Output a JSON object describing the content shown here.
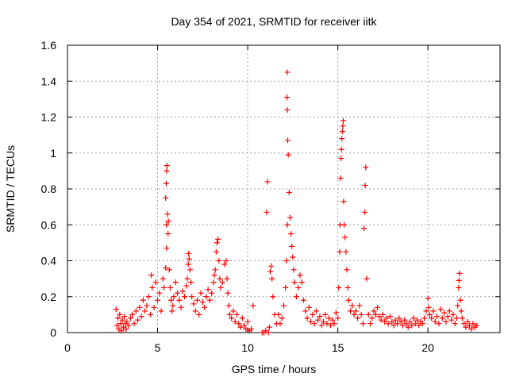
{
  "chart_data": {
    "type": "scatter",
    "title": "Day 354 of 2021, SRMTID for receiver iitk",
    "xlabel": "GPS time / hours",
    "ylabel": "SRMTID / TECUs",
    "xlim": [
      0,
      24
    ],
    "ylim": [
      0,
      1.6
    ],
    "x_ticks": [
      0,
      5,
      10,
      15,
      20
    ],
    "y_ticks": [
      0,
      0.2,
      0.4,
      0.6,
      0.8,
      1,
      1.2,
      1.4,
      1.6
    ],
    "x_tick_labels": [
      "0",
      "5",
      "10",
      "15",
      "20"
    ],
    "y_tick_labels": [
      "0",
      "0.2",
      "0.4",
      "0.6",
      "0.8",
      "1",
      "1.2",
      "1.4",
      "1.6"
    ],
    "grid": true,
    "marker": "+",
    "series": [
      {
        "name": "SRMTID",
        "color": "#ff0000",
        "points": [
          [
            2.7,
            0.13
          ],
          [
            2.75,
            0.04
          ],
          [
            2.8,
            0.08
          ],
          [
            2.85,
            0.02
          ],
          [
            2.9,
            0.1
          ],
          [
            2.95,
            0.05
          ],
          [
            3.0,
            0.01
          ],
          [
            3.05,
            0.07
          ],
          [
            3.1,
            0.03
          ],
          [
            3.15,
            0.09
          ],
          [
            3.2,
            0.05
          ],
          [
            3.25,
            0.02
          ],
          [
            3.3,
            0.06
          ],
          [
            3.4,
            0.04
          ],
          [
            3.5,
            0.08
          ],
          [
            3.6,
            0.1
          ],
          [
            3.7,
            0.05
          ],
          [
            3.8,
            0.12
          ],
          [
            3.9,
            0.07
          ],
          [
            4.0,
            0.14
          ],
          [
            4.1,
            0.09
          ],
          [
            4.2,
            0.18
          ],
          [
            4.3,
            0.12
          ],
          [
            4.4,
            0.15
          ],
          [
            4.5,
            0.2
          ],
          [
            4.6,
            0.1
          ],
          [
            4.65,
            0.32
          ],
          [
            4.7,
            0.25
          ],
          [
            4.8,
            0.14
          ],
          [
            4.9,
            0.28
          ],
          [
            5.0,
            0.18
          ],
          [
            5.1,
            0.22
          ],
          [
            5.2,
            0.12
          ],
          [
            5.3,
            0.3
          ],
          [
            5.35,
            0.25
          ],
          [
            5.45,
            0.36
          ],
          [
            5.5,
            0.47
          ],
          [
            5.5,
            0.6
          ],
          [
            5.45,
            0.75
          ],
          [
            5.48,
            0.83
          ],
          [
            5.5,
            0.9
          ],
          [
            5.52,
            0.93
          ],
          [
            5.55,
            0.66
          ],
          [
            5.6,
            0.62
          ],
          [
            5.58,
            0.55
          ],
          [
            5.65,
            0.35
          ],
          [
            5.7,
            0.25
          ],
          [
            5.75,
            0.18
          ],
          [
            5.8,
            0.12
          ],
          [
            5.85,
            0.15
          ],
          [
            5.9,
            0.2
          ],
          [
            6.0,
            0.28
          ],
          [
            6.1,
            0.22
          ],
          [
            6.2,
            0.18
          ],
          [
            6.3,
            0.14
          ],
          [
            6.4,
            0.23
          ],
          [
            6.5,
            0.2
          ],
          [
            6.6,
            0.26
          ],
          [
            6.65,
            0.3
          ],
          [
            6.7,
            0.38
          ],
          [
            6.72,
            0.44
          ],
          [
            6.75,
            0.41
          ],
          [
            6.8,
            0.35
          ],
          [
            6.85,
            0.28
          ],
          [
            6.9,
            0.2
          ],
          [
            7.0,
            0.16
          ],
          [
            7.1,
            0.12
          ],
          [
            7.2,
            0.18
          ],
          [
            7.3,
            0.1
          ],
          [
            7.4,
            0.22
          ],
          [
            7.5,
            0.17
          ],
          [
            7.6,
            0.14
          ],
          [
            7.7,
            0.2
          ],
          [
            7.8,
            0.24
          ],
          [
            7.9,
            0.18
          ],
          [
            8.0,
            0.22
          ],
          [
            8.1,
            0.28
          ],
          [
            8.15,
            0.32
          ],
          [
            8.2,
            0.35
          ],
          [
            8.25,
            0.45
          ],
          [
            8.3,
            0.5
          ],
          [
            8.35,
            0.52
          ],
          [
            8.4,
            0.4
          ],
          [
            8.45,
            0.3
          ],
          [
            8.5,
            0.25
          ],
          [
            8.6,
            0.28
          ],
          [
            8.7,
            0.38
          ],
          [
            8.8,
            0.4
          ],
          [
            8.85,
            0.3
          ],
          [
            8.9,
            0.22
          ],
          [
            8.95,
            0.15
          ],
          [
            9.0,
            0.1
          ],
          [
            9.1,
            0.08
          ],
          [
            9.2,
            0.12
          ],
          [
            9.3,
            0.06
          ],
          [
            9.4,
            0.1
          ],
          [
            9.5,
            0.05
          ],
          [
            9.6,
            0.03
          ],
          [
            9.7,
            0.08
          ],
          [
            9.8,
            0.04
          ],
          [
            9.9,
            0.02
          ],
          [
            10.0,
            0.06
          ],
          [
            10.1,
            0.01
          ],
          [
            10.2,
            0.02
          ],
          [
            10.3,
            0.15
          ],
          [
            10.8,
            0.0
          ],
          [
            10.9,
            0.0
          ],
          [
            11.0,
            0.01
          ],
          [
            11.05,
            0.67
          ],
          [
            11.1,
            0.84
          ],
          [
            11.15,
            0.0
          ],
          [
            11.2,
            0.03
          ],
          [
            11.25,
            0.34
          ],
          [
            11.3,
            0.37
          ],
          [
            11.35,
            0.3
          ],
          [
            11.4,
            0.2
          ],
          [
            11.5,
            0.1
          ],
          [
            11.6,
            0.05
          ],
          [
            11.7,
            0.1
          ],
          [
            11.8,
            0.05
          ],
          [
            11.9,
            0.08
          ],
          [
            12.0,
            0.15
          ],
          [
            12.1,
            0.25
          ],
          [
            12.15,
            0.4
          ],
          [
            12.2,
            0.6
          ],
          [
            12.25,
            0.99
          ],
          [
            12.22,
            1.07
          ],
          [
            12.2,
            1.24
          ],
          [
            12.18,
            1.31
          ],
          [
            12.2,
            1.45
          ],
          [
            12.3,
            0.78
          ],
          [
            12.35,
            0.64
          ],
          [
            12.4,
            0.55
          ],
          [
            12.45,
            0.48
          ],
          [
            12.5,
            0.42
          ],
          [
            12.55,
            0.35
          ],
          [
            12.6,
            0.28
          ],
          [
            12.7,
            0.2
          ],
          [
            12.8,
            0.25
          ],
          [
            12.9,
            0.32
          ],
          [
            13.0,
            0.28
          ],
          [
            13.1,
            0.18
          ],
          [
            13.2,
            0.12
          ],
          [
            13.3,
            0.08
          ],
          [
            13.4,
            0.14
          ],
          [
            13.5,
            0.06
          ],
          [
            13.6,
            0.1
          ],
          [
            13.7,
            0.05
          ],
          [
            13.8,
            0.12
          ],
          [
            13.9,
            0.07
          ],
          [
            14.0,
            0.09
          ],
          [
            14.1,
            0.04
          ],
          [
            14.2,
            0.06
          ],
          [
            14.3,
            0.1
          ],
          [
            14.4,
            0.05
          ],
          [
            14.5,
            0.08
          ],
          [
            14.6,
            0.04
          ],
          [
            14.7,
            0.07
          ],
          [
            14.8,
            0.05
          ],
          [
            14.9,
            0.11
          ],
          [
            15.0,
            0.08
          ],
          [
            15.05,
            0.25
          ],
          [
            15.1,
            0.45
          ],
          [
            15.12,
            0.6
          ],
          [
            15.15,
            0.86
          ],
          [
            15.18,
            0.97
          ],
          [
            15.2,
            1.02
          ],
          [
            15.22,
            1.08
          ],
          [
            15.25,
            1.12
          ],
          [
            15.28,
            1.15
          ],
          [
            15.3,
            1.18
          ],
          [
            15.32,
            0.73
          ],
          [
            15.35,
            0.6
          ],
          [
            15.4,
            0.53
          ],
          [
            15.45,
            0.45
          ],
          [
            15.5,
            0.35
          ],
          [
            15.55,
            0.25
          ],
          [
            15.6,
            0.18
          ],
          [
            15.7,
            0.12
          ],
          [
            15.8,
            0.15
          ],
          [
            15.9,
            0.1
          ],
          [
            16.0,
            0.12
          ],
          [
            16.1,
            0.08
          ],
          [
            16.2,
            0.15
          ],
          [
            16.3,
            0.1
          ],
          [
            16.4,
            0.05
          ],
          [
            16.45,
            0.58
          ],
          [
            16.5,
            0.67
          ],
          [
            16.52,
            0.82
          ],
          [
            16.55,
            0.92
          ],
          [
            16.6,
            0.3
          ],
          [
            16.7,
            0.1
          ],
          [
            16.8,
            0.05
          ],
          [
            16.9,
            0.08
          ],
          [
            17.0,
            0.12
          ],
          [
            17.1,
            0.1
          ],
          [
            17.2,
            0.14
          ],
          [
            17.3,
            0.09
          ],
          [
            17.4,
            0.07
          ],
          [
            17.5,
            0.1
          ],
          [
            17.6,
            0.06
          ],
          [
            17.7,
            0.08
          ],
          [
            17.8,
            0.05
          ],
          [
            17.9,
            0.09
          ],
          [
            18.0,
            0.06
          ],
          [
            18.1,
            0.04
          ],
          [
            18.2,
            0.07
          ],
          [
            18.3,
            0.05
          ],
          [
            18.4,
            0.08
          ],
          [
            18.5,
            0.06
          ],
          [
            18.6,
            0.04
          ],
          [
            18.7,
            0.07
          ],
          [
            18.8,
            0.05
          ],
          [
            18.9,
            0.03
          ],
          [
            19.0,
            0.06
          ],
          [
            19.1,
            0.04
          ],
          [
            19.2,
            0.08
          ],
          [
            19.3,
            0.05
          ],
          [
            19.4,
            0.07
          ],
          [
            19.5,
            0.04
          ],
          [
            19.6,
            0.06
          ],
          [
            19.7,
            0.05
          ],
          [
            19.8,
            0.08
          ],
          [
            19.9,
            0.12
          ],
          [
            20.0,
            0.19
          ],
          [
            20.05,
            0.14
          ],
          [
            20.1,
            0.1
          ],
          [
            20.2,
            0.08
          ],
          [
            20.3,
            0.12
          ],
          [
            20.4,
            0.06
          ],
          [
            20.5,
            0.09
          ],
          [
            20.6,
            0.05
          ],
          [
            20.7,
            0.13
          ],
          [
            20.8,
            0.08
          ],
          [
            20.9,
            0.11
          ],
          [
            21.0,
            0.06
          ],
          [
            21.1,
            0.09
          ],
          [
            21.2,
            0.12
          ],
          [
            21.3,
            0.07
          ],
          [
            21.4,
            0.1
          ],
          [
            21.5,
            0.05
          ],
          [
            21.6,
            0.08
          ],
          [
            21.65,
            0.15
          ],
          [
            21.7,
            0.25
          ],
          [
            21.72,
            0.29
          ],
          [
            21.75,
            0.33
          ],
          [
            21.8,
            0.18
          ],
          [
            21.85,
            0.12
          ],
          [
            21.9,
            0.08
          ],
          [
            22.0,
            0.05
          ],
          [
            22.1,
            0.03
          ],
          [
            22.2,
            0.06
          ],
          [
            22.3,
            0.04
          ],
          [
            22.4,
            0.02
          ],
          [
            22.5,
            0.05
          ],
          [
            22.6,
            0.03
          ],
          [
            22.7,
            0.04
          ]
        ]
      }
    ]
  }
}
